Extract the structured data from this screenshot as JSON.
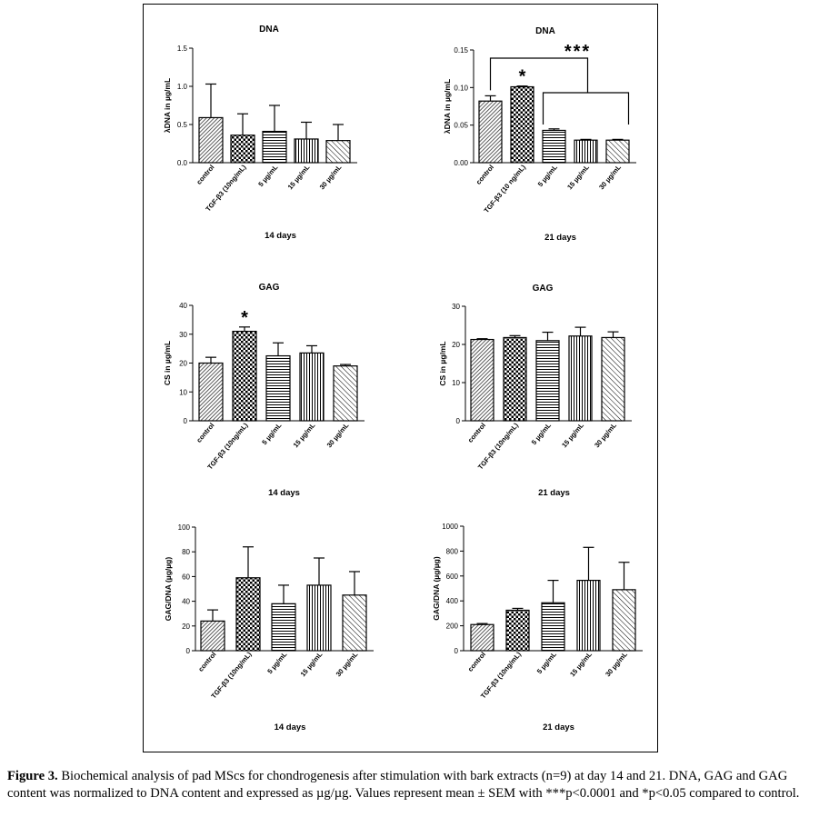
{
  "caption": {
    "label": "Figure 3.",
    "text": " Biochemical analysis of pad MScs for chondrogenesis after stimulation with bark extracts (n=9) at day 14 and 21. DNA, GAG and GAG content was normalized to DNA content and expressed as µg/µg. Values represent mean ± SEM with ***p<0.0001 and *p<0.05 compared to control."
  },
  "chart_data": [
    {
      "id": "dna-14",
      "type": "bar",
      "title": "DNA",
      "ylabel": "λDNA in µg/mL",
      "xlabel": "14 days",
      "categories": [
        "control",
        "TGF-β3 (10ng/mL)",
        "5 µg/mL",
        "15 µg/mL",
        "30 µg/mL"
      ],
      "values": [
        0.59,
        0.36,
        0.41,
        0.31,
        0.29
      ],
      "errors": [
        0.44,
        0.28,
        0.34,
        0.22,
        0.21
      ],
      "ylim": [
        0,
        1.5
      ],
      "yticks": [
        "0.0",
        "0.5",
        "1.0",
        "1.5"
      ],
      "significance": []
    },
    {
      "id": "dna-21",
      "type": "bar",
      "title": "DNA",
      "ylabel": "λDNA in µg/mL",
      "xlabel": "21 days",
      "categories": [
        "control",
        "TGF-β3 (10 ng/mL)",
        "5 µg/mL",
        "15 µg/mL",
        "30 µg/mL"
      ],
      "values": [
        0.082,
        0.101,
        0.043,
        0.03,
        0.03
      ],
      "errors": [
        0.007,
        0.001,
        0.002,
        0.001,
        0.001
      ],
      "ylim": [
        0,
        0.15
      ],
      "yticks": [
        "0.00",
        "0.05",
        "0.10",
        "0.15"
      ],
      "significance": [
        {
          "type": "star",
          "category": 1,
          "label": "*"
        },
        {
          "type": "bracket",
          "from": 0,
          "to_group": [
            2,
            4
          ],
          "label": "***"
        }
      ]
    },
    {
      "id": "gag-14",
      "type": "bar",
      "title": "GAG",
      "ylabel": "CS in µg/mL",
      "xlabel": "14 days",
      "categories": [
        "control",
        "TGF-β3 (10ng/mL)",
        "5 µg/mL",
        "15 µg/mL",
        "30 µg/mL"
      ],
      "values": [
        20,
        31,
        22.5,
        23.5,
        19
      ],
      "errors": [
        2,
        1.5,
        4.5,
        2.5,
        0.5
      ],
      "ylim": [
        0,
        40
      ],
      "yticks": [
        "0",
        "10",
        "20",
        "30",
        "40"
      ],
      "significance": [
        {
          "type": "star",
          "category": 1,
          "label": "*"
        }
      ]
    },
    {
      "id": "gag-21",
      "type": "bar",
      "title": "GAG",
      "ylabel": "CS in µg/mL",
      "xlabel": "21 days",
      "categories": [
        "control",
        "TGF-β3 (10ng/mL)",
        "5 µg/mL",
        "15 µg/mL",
        "30 µg/mL"
      ],
      "values": [
        21.3,
        21.8,
        21,
        22.2,
        21.8
      ],
      "errors": [
        0.2,
        0.5,
        2.2,
        2.3,
        1.5
      ],
      "ylim": [
        0,
        30
      ],
      "yticks": [
        "0",
        "10",
        "20",
        "30"
      ],
      "significance": []
    },
    {
      "id": "ratio-14",
      "type": "bar",
      "title": "",
      "ylabel": "GAG/DNA (µg/µg)",
      "xlabel": "14 days",
      "categories": [
        "control",
        "TGF-β3 (10ng/mL)",
        "5 µg/mL",
        "15 µg/mL",
        "30 µg/mL"
      ],
      "values": [
        24,
        59,
        38,
        53,
        45
      ],
      "errors": [
        9,
        25,
        15,
        22,
        19
      ],
      "ylim": [
        0,
        100
      ],
      "yticks": [
        "0",
        "20",
        "40",
        "60",
        "80",
        "100"
      ],
      "significance": []
    },
    {
      "id": "ratio-21",
      "type": "bar",
      "title": "",
      "ylabel": "GAG/DNA (µg/µg)",
      "xlabel": "21 days",
      "categories": [
        "control",
        "TGF-β3 (10ng/mL)",
        "5 µg/mL",
        "15 µg/mL",
        "30 µg/mL"
      ],
      "values": [
        210,
        325,
        385,
        565,
        490
      ],
      "errors": [
        8,
        15,
        180,
        265,
        220
      ],
      "ylim": [
        0,
        1000
      ],
      "yticks": [
        "0",
        "200",
        "400",
        "600",
        "800",
        "1000"
      ],
      "significance": []
    }
  ]
}
